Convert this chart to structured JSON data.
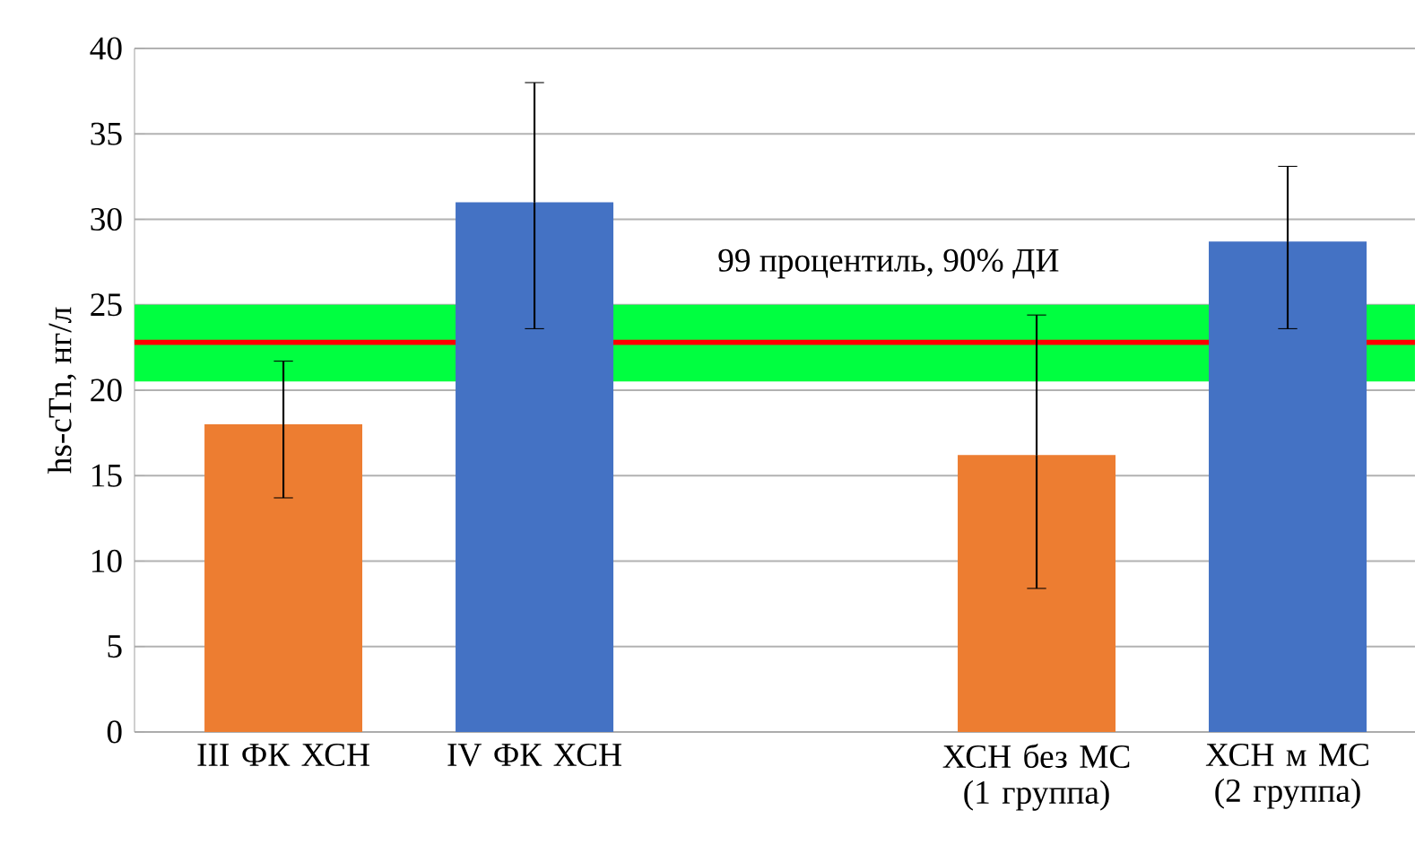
{
  "chart_data": {
    "type": "bar",
    "ylabel": "hs-cTn,  нг/л",
    "categories": [
      "III ФК ХСН",
      "IV ФК ХСН",
      null,
      "ХСН без МС (1 группа)",
      "ХСН м МС (2 группа)"
    ],
    "values": [
      18,
      31,
      null,
      16.2,
      28.7
    ],
    "colors": [
      "#ed7d31",
      "#4472c4",
      null,
      "#ed7d31",
      "#4472c4"
    ],
    "errors": [
      [
        13.7,
        21.7
      ],
      [
        23.6,
        38
      ],
      null,
      [
        8.4,
        24.4
      ],
      [
        23.6,
        33.1
      ]
    ],
    "ylim": [
      0,
      40
    ],
    "yticks": [
      0,
      5,
      10,
      15,
      20,
      25,
      30,
      35,
      40
    ],
    "grid": "y",
    "bands": [
      {
        "axis": "y",
        "from": 20.5,
        "to": 25,
        "label": "99 процентиль, 90% ДИ",
        "color": "#00ff40"
      }
    ],
    "ref_lines": [
      {
        "axis": "y",
        "value": 22.8,
        "color": "#ff0000"
      }
    ]
  }
}
